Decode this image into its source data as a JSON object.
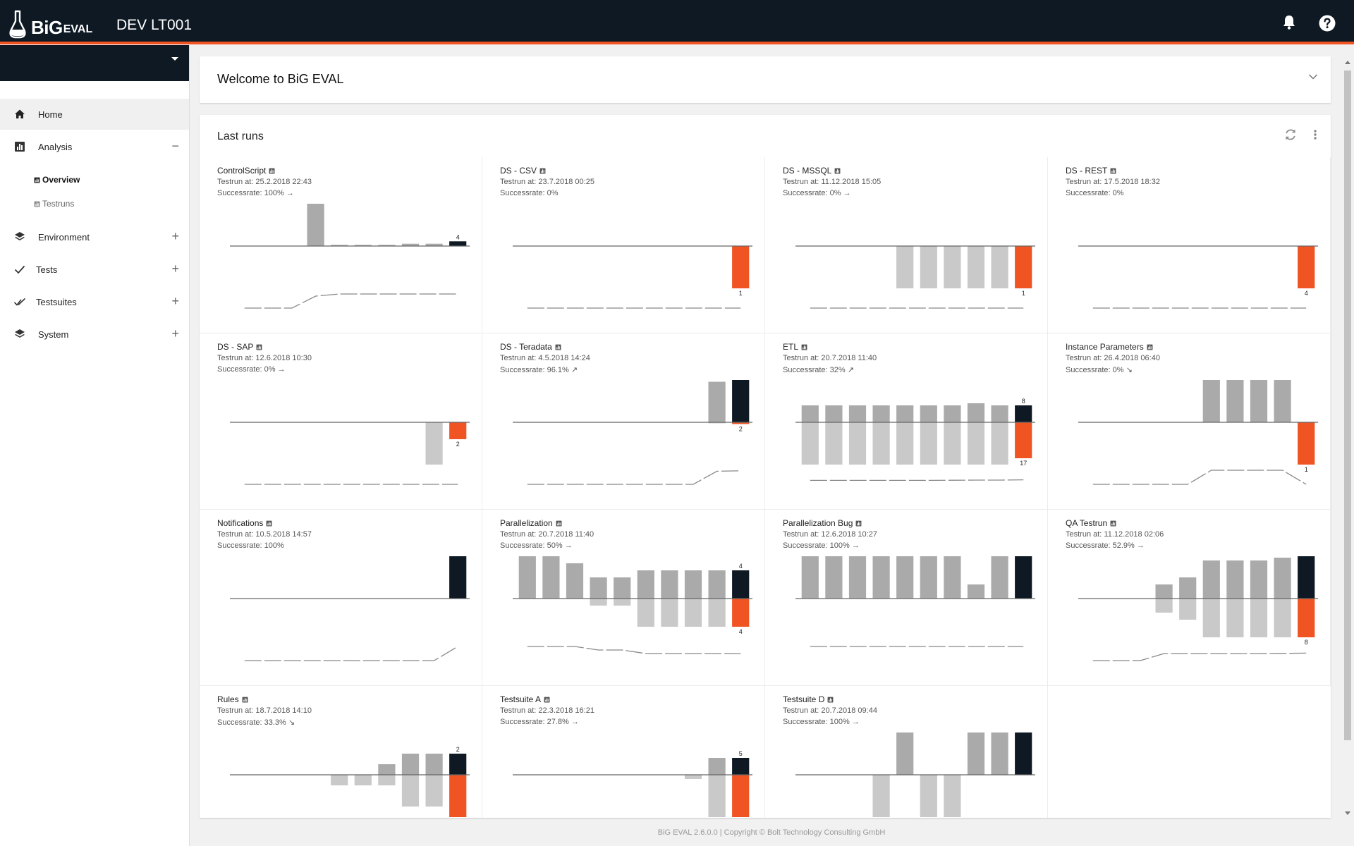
{
  "app": {
    "logo_text_big": "BiG",
    "logo_text_small": "EVAL",
    "environment_title": "DEV LT001"
  },
  "header_icons": {
    "notifications": "bell-icon",
    "help": "help-circle-icon"
  },
  "sidebar": {
    "project_select_value": "",
    "items": [
      {
        "label": "Home",
        "icon": "home-icon",
        "expander": ""
      },
      {
        "label": "Analysis",
        "icon": "bar-chart-icon",
        "expander": "−"
      },
      {
        "label": "Environment",
        "icon": "layers-icon",
        "expander": "+"
      },
      {
        "label": "Tests",
        "icon": "check-icon",
        "expander": "+"
      },
      {
        "label": "Testsuites",
        "icon": "double-check-icon",
        "expander": "+"
      },
      {
        "label": "System",
        "icon": "layers-icon",
        "expander": "+"
      }
    ],
    "analysis_subitems": [
      {
        "label": "Overview",
        "icon": "bar-chart-icon"
      },
      {
        "label": "Testruns",
        "icon": "bar-chart-icon"
      }
    ]
  },
  "welcome": {
    "title": "Welcome to BiG EVAL"
  },
  "last_runs": {
    "title": "Last runs",
    "colors": {
      "success": "#aaaaaa",
      "success_latest": "#0e1924",
      "fail": "#c9c9c9",
      "fail_latest": "#f05423",
      "trend": "#888888"
    },
    "cards": [
      {
        "title": "ControlScript",
        "date": "Testrun at: 25.2.2018 22:43",
        "rate": "Successrate: 100%",
        "trend_arrow": "→",
        "success": [
          0,
          0,
          0,
          3.6,
          0.1,
          0.1,
          0.1,
          0.2,
          0.2,
          0.4
        ],
        "fail": [
          0,
          0,
          0,
          0,
          0,
          0,
          0,
          0,
          0,
          0
        ],
        "rates": [
          0,
          0,
          0,
          0.85,
          1,
          1,
          1,
          1,
          1,
          1
        ],
        "top_label": "4",
        "bottom_label": ""
      },
      {
        "title": "DS - CSV",
        "date": "Testrun at: 23.7.2018 00:25",
        "rate": "Successrate: 0%",
        "trend_arrow": "",
        "success": [
          0,
          0,
          0,
          0,
          0,
          0,
          0,
          0,
          0,
          0
        ],
        "fail": [
          0,
          0,
          0,
          0,
          0,
          0,
          0,
          0,
          0,
          1
        ],
        "rates": [
          0,
          0,
          0,
          0,
          0,
          0,
          0,
          0,
          0,
          0
        ],
        "top_label": "",
        "bottom_label": "1"
      },
      {
        "title": "DS - MSSQL",
        "date": "Testrun at: 11.12.2018 15:05",
        "rate": "Successrate: 0%",
        "trend_arrow": "→",
        "success": [
          0,
          0,
          0,
          0,
          0,
          0,
          0,
          0,
          0,
          0
        ],
        "fail": [
          0,
          0,
          0,
          0,
          1,
          1,
          1,
          1,
          1,
          1
        ],
        "rates": [
          0,
          0,
          0,
          0,
          0,
          0,
          0,
          0,
          0,
          0
        ],
        "top_label": "",
        "bottom_label": "1"
      },
      {
        "title": "DS - REST",
        "date": "Testrun at: 17.5.2018 18:32",
        "rate": "Successrate: 0%",
        "trend_arrow": "",
        "success": [
          0,
          0,
          0,
          0,
          0,
          0,
          0,
          0,
          0,
          0
        ],
        "fail": [
          0,
          0,
          0,
          0,
          0,
          0,
          0,
          0,
          0,
          4
        ],
        "rates": [
          0,
          0,
          0,
          0,
          0,
          0,
          0,
          0,
          0,
          0
        ],
        "top_label": "",
        "bottom_label": "4"
      },
      {
        "title": "DS - SAP",
        "date": "Testrun at: 12.6.2018 10:30",
        "rate": "Successrate: 0%",
        "trend_arrow": "→",
        "success": [
          0,
          0,
          0,
          0,
          0,
          0,
          0,
          0,
          0,
          0
        ],
        "fail": [
          0,
          0,
          0,
          0,
          0,
          0,
          0,
          0,
          5,
          2
        ],
        "rates": [
          0,
          0,
          0,
          0,
          0,
          0,
          0,
          0,
          0,
          0
        ],
        "top_label": "",
        "bottom_label": "2"
      },
      {
        "title": "DS - Teradata",
        "date": "Testrun at: 4.5.2018 14:24",
        "rate": "Successrate: 96.1%",
        "trend_arrow": "↗",
        "success": [
          0,
          0,
          0,
          0,
          0,
          0,
          0,
          0,
          46,
          48
        ],
        "fail": [
          0,
          0,
          0,
          0,
          0,
          0,
          0,
          0,
          0.5,
          2
        ],
        "rates": [
          0,
          0,
          0,
          0,
          0,
          0,
          0,
          0,
          0.93,
          0.96
        ],
        "top_label": "",
        "bottom_label": "2"
      },
      {
        "title": "ETL",
        "date": "Testrun at: 20.7.2018 11:40",
        "rate": "Successrate: 32%",
        "trend_arrow": "↗",
        "success": [
          8,
          8,
          8,
          8,
          8,
          8,
          8,
          9,
          8,
          8
        ],
        "fail": [
          20,
          20,
          20,
          20,
          20,
          20,
          20,
          20,
          20,
          17
        ],
        "rates": [
          0.28,
          0.28,
          0.28,
          0.28,
          0.28,
          0.28,
          0.29,
          0.3,
          0.3,
          0.32
        ],
        "top_label": "8",
        "bottom_label": "17"
      },
      {
        "title": "Instance Parameters",
        "date": "Testrun at: 26.4.2018 06:40",
        "rate": "Successrate: 0%",
        "trend_arrow": "↘",
        "success": [
          0,
          0,
          0,
          0,
          0,
          1,
          1,
          1,
          1,
          0
        ],
        "fail": [
          0,
          0,
          0,
          0,
          0,
          0,
          0,
          0,
          0,
          1
        ],
        "rates": [
          0,
          0,
          0,
          0,
          0,
          1,
          1,
          1,
          1,
          0
        ],
        "top_label": "",
        "bottom_label": "1"
      },
      {
        "title": "Notifications",
        "date": "Testrun at: 10.5.2018 14:57",
        "rate": "Successrate: 100%",
        "trend_arrow": "",
        "success": [
          0,
          0,
          0,
          0,
          0,
          0,
          0,
          0,
          0,
          1
        ],
        "fail": [
          0,
          0,
          0,
          0,
          0,
          0,
          0,
          0,
          0,
          0
        ],
        "rates": [
          0,
          0,
          0,
          0,
          0,
          0,
          0,
          0,
          0,
          1
        ],
        "top_label": "",
        "bottom_label": ""
      },
      {
        "title": "Parallelization",
        "date": "Testrun at: 20.7.2018 11:40",
        "rate": "Successrate: 50%",
        "trend_arrow": "→",
        "success": [
          6,
          6,
          5,
          3,
          3,
          4,
          4,
          4,
          4,
          4
        ],
        "fail": [
          0,
          0,
          0,
          1,
          1,
          4,
          4,
          4,
          4,
          4
        ],
        "rates": [
          1,
          1,
          1,
          0.75,
          0.75,
          0.5,
          0.5,
          0.5,
          0.5,
          0.5
        ],
        "top_label": "4",
        "bottom_label": "4"
      },
      {
        "title": "Parallelization Bug",
        "date": "Testrun at: 12.6.2018 10:27",
        "rate": "Successrate: 100%",
        "trend_arrow": "→",
        "success": [
          6,
          6,
          6,
          6,
          6,
          6,
          6,
          2,
          6,
          6
        ],
        "fail": [
          0,
          0,
          0,
          0,
          0,
          0,
          0,
          0,
          0,
          0
        ],
        "rates": [
          1,
          1,
          1,
          1,
          1,
          1,
          1,
          1,
          1,
          1
        ],
        "top_label": "",
        "bottom_label": ""
      },
      {
        "title": "QA Testrun",
        "date": "Testrun at: 11.12.2018 02:06",
        "rate": "Successrate: 52.9%",
        "trend_arrow": "→",
        "success": [
          0,
          0,
          0,
          2,
          3,
          5.4,
          5.4,
          5.4,
          5.8,
          6
        ],
        "fail": [
          0,
          0,
          0,
          2,
          3,
          5.5,
          5.5,
          5.5,
          5.5,
          5.5
        ],
        "rates": [
          0,
          0,
          0,
          0.5,
          0.5,
          0.5,
          0.5,
          0.5,
          0.51,
          0.53
        ],
        "top_label": "",
        "bottom_label": "8"
      },
      {
        "title": "Rules",
        "date": "Testrun at: 18.7.2018 14:10",
        "rate": "Successrate: 33.3%",
        "trend_arrow": "↘",
        "success": [
          0,
          0,
          0,
          0,
          0,
          0,
          1,
          2,
          2,
          2
        ],
        "fail": [
          0,
          0,
          0,
          0,
          1,
          1,
          1,
          3,
          3,
          4
        ],
        "rates": [],
        "top_label": "2",
        "bottom_label": ""
      },
      {
        "title": "Testsuite A",
        "date": "Testrun at: 22.3.2018 16:21",
        "rate": "Successrate: 27.8%",
        "trend_arrow": "→",
        "success": [
          0,
          0,
          0,
          0,
          0,
          0,
          0,
          0,
          4,
          4
        ],
        "fail": [
          0,
          0,
          0,
          0,
          0,
          0,
          0,
          1,
          10,
          10
        ],
        "rates": [],
        "top_label": "5",
        "bottom_label": ""
      },
      {
        "title": "Testsuite D",
        "date": "Testrun at: 20.7.2018 09:44",
        "rate": "Successrate: 100%",
        "trend_arrow": "→",
        "success": [
          0,
          0,
          0,
          0,
          1,
          0,
          0,
          1,
          1,
          1
        ],
        "fail": [
          0,
          0,
          0,
          1,
          0,
          1,
          1,
          0,
          0,
          0
        ],
        "rates": [],
        "top_label": "",
        "bottom_label": ""
      }
    ]
  },
  "footer": {
    "text": "BiG EVAL 2.6.0.0 | Copyright © Bolt Technology Consulting GmbH"
  }
}
